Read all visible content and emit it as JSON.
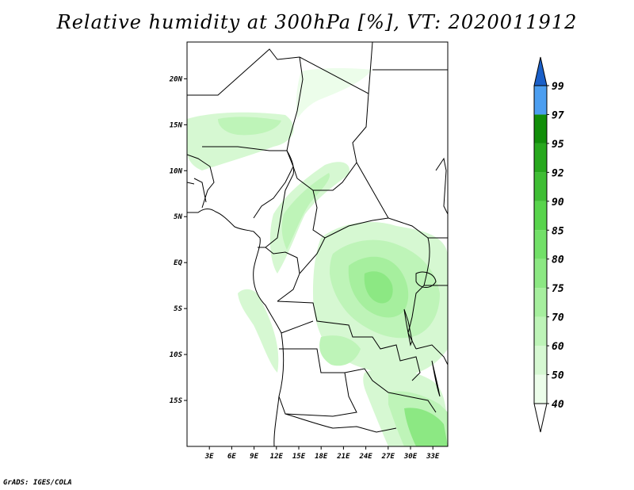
{
  "title": "Relative humidity at 300hPa [%], VT: 2020011912",
  "footer": "GrADS: IGES/COLA",
  "map": {
    "lon_range": [
      0,
      35
    ],
    "lat_range": [
      -20,
      24
    ],
    "lat_ticks": [
      {
        "value": 20,
        "label": "20N"
      },
      {
        "value": 15,
        "label": "15N"
      },
      {
        "value": 10,
        "label": "10N"
      },
      {
        "value": 5,
        "label": "5N"
      },
      {
        "value": 0,
        "label": "EQ"
      },
      {
        "value": -5,
        "label": "5S"
      },
      {
        "value": -10,
        "label": "10S"
      },
      {
        "value": -15,
        "label": "15S"
      }
    ],
    "lon_ticks": [
      {
        "value": 3,
        "label": "3E"
      },
      {
        "value": 6,
        "label": "6E"
      },
      {
        "value": 9,
        "label": "9E"
      },
      {
        "value": 12,
        "label": "12E"
      },
      {
        "value": 15,
        "label": "15E"
      },
      {
        "value": 18,
        "label": "18E"
      },
      {
        "value": 21,
        "label": "21E"
      },
      {
        "value": 24,
        "label": "24E"
      },
      {
        "value": 27,
        "label": "27E"
      },
      {
        "value": 30,
        "label": "30E"
      },
      {
        "value": 33,
        "label": "33E"
      }
    ]
  },
  "colorbar": {
    "levels": [
      {
        "label": "40",
        "color": "#ecfdea"
      },
      {
        "label": "50",
        "color": "#d6f8d2"
      },
      {
        "label": "60",
        "color": "#bef4b8"
      },
      {
        "label": "70",
        "color": "#a6ef9e"
      },
      {
        "label": "75",
        "color": "#8ce883"
      },
      {
        "label": "80",
        "color": "#72e068"
      },
      {
        "label": "85",
        "color": "#58d44c"
      },
      {
        "label": "90",
        "color": "#3fbe34"
      },
      {
        "label": "92",
        "color": "#27a81d"
      },
      {
        "label": "95",
        "color": "#118e09"
      },
      {
        "label": "97",
        "color": "#4c9ef0"
      },
      {
        "label": "99",
        "color": "#2c79e0"
      }
    ],
    "top_color": "#1a5fc8",
    "bottom_color": "#ffffff"
  }
}
